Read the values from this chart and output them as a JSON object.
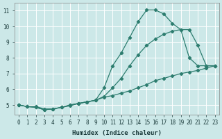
{
  "xlabel": "Humidex (Indice chaleur)",
  "xlim": [
    -0.5,
    23.5
  ],
  "ylim": [
    4.4,
    11.5
  ],
  "xticks": [
    0,
    1,
    2,
    3,
    4,
    5,
    6,
    7,
    8,
    9,
    10,
    11,
    12,
    13,
    14,
    15,
    16,
    17,
    18,
    19,
    20,
    21,
    22,
    23
  ],
  "yticks": [
    5,
    6,
    7,
    8,
    9,
    10,
    11
  ],
  "background_color": "#cce8e8",
  "grid_color": "#ffffff",
  "line_color": "#2d7d6f",
  "series": [
    {
      "x": [
        0,
        1,
        2,
        3,
        4,
        5,
        6,
        7,
        8,
        9,
        10,
        11,
        12,
        13,
        14,
        15,
        16,
        17,
        18,
        19,
        20,
        21,
        22,
        23
      ],
      "y": [
        5.0,
        4.9,
        4.9,
        4.75,
        4.75,
        4.85,
        4.95,
        5.1,
        5.2,
        5.3,
        6.1,
        7.5,
        8.3,
        9.3,
        10.3,
        11.05,
        11.05,
        10.8,
        10.2,
        9.8,
        8.0,
        7.5,
        7.5,
        7.5
      ]
    },
    {
      "x": [
        0,
        1,
        2,
        3,
        4,
        5,
        6,
        7,
        8,
        9,
        10,
        11,
        12,
        13,
        14,
        15,
        16,
        17,
        18,
        19,
        20,
        21,
        22,
        23
      ],
      "y": [
        5.0,
        4.9,
        4.85,
        4.7,
        4.75,
        4.85,
        5.0,
        5.1,
        5.2,
        5.3,
        5.55,
        6.1,
        6.7,
        7.5,
        8.2,
        8.8,
        9.2,
        9.5,
        9.7,
        9.8,
        9.8,
        8.8,
        7.5,
        7.5
      ]
    },
    {
      "x": [
        0,
        1,
        2,
        3,
        4,
        5,
        6,
        7,
        8,
        9,
        10,
        11,
        12,
        13,
        14,
        15,
        16,
        17,
        18,
        19,
        20,
        21,
        22,
        23
      ],
      "y": [
        5.0,
        4.9,
        4.85,
        4.7,
        4.75,
        4.85,
        5.0,
        5.1,
        5.2,
        5.3,
        5.5,
        5.6,
        5.75,
        5.9,
        6.1,
        6.3,
        6.55,
        6.7,
        6.85,
        7.0,
        7.1,
        7.2,
        7.35,
        7.5
      ]
    }
  ]
}
